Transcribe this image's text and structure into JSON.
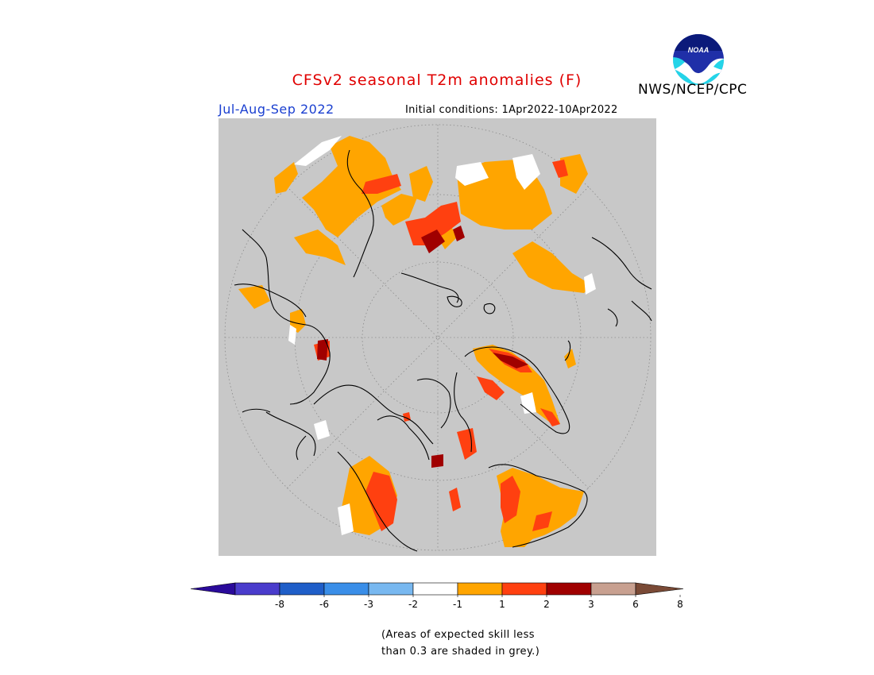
{
  "header": {
    "title": "CFSv2 seasonal T2m anomalies (F)",
    "season": "Jul-Aug-Sep 2022",
    "initial_conditions": "Initial conditions: 1Apr2022-10Apr2022",
    "agency": "NWS/NCEP/CPC",
    "logo_text": "NOAA",
    "title_color": "#e00000",
    "season_color": "#1a3fd0"
  },
  "colors": {
    "skill_grey": "#c8c8c8",
    "coast": "#000000",
    "levels": [
      "#2a0a9a",
      "#4a3ccc",
      "#1f5ec8",
      "#3a8ee8",
      "#78b8f0",
      "#ffffff",
      "#ffa500",
      "#ff4010",
      "#a00000",
      "#c8a090",
      "#7a4a36"
    ]
  },
  "colorbar": {
    "ticks": [
      "-8",
      "-6",
      "-3",
      "-2",
      "-1",
      "1",
      "2",
      "3",
      "6",
      "8"
    ]
  },
  "note": {
    "line1": "(Areas of expected skill less",
    "line2": "than 0.3 are shaded in grey.)"
  }
}
